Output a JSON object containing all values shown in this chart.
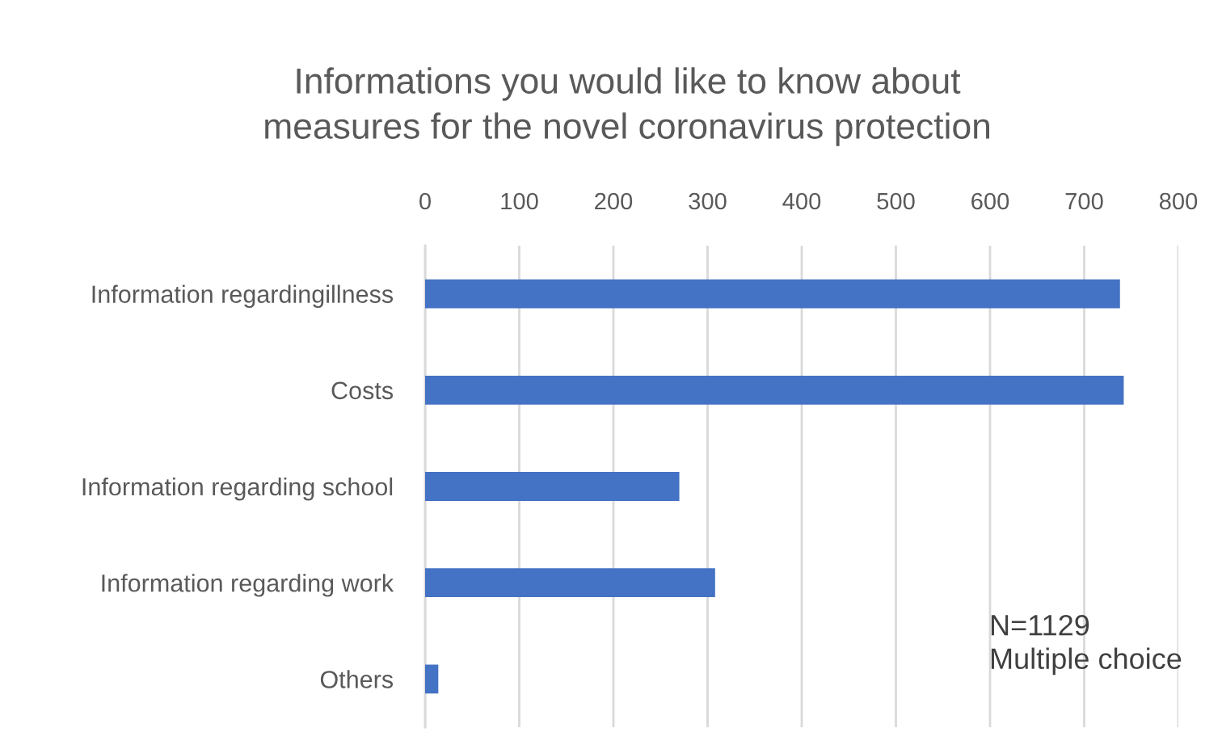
{
  "chart_data": {
    "type": "bar",
    "orientation": "horizontal",
    "title": "Informations you would like to know about\nmeasures for the novel coronavirus protection",
    "categories": [
      "Information regardingillness",
      "Costs",
      "Information regarding school",
      "Information regarding work",
      "Others"
    ],
    "values": [
      738,
      742,
      270,
      308,
      14
    ],
    "color": "#4472c4",
    "xlim": [
      0,
      800
    ],
    "xticks": [
      0,
      100,
      200,
      300,
      400,
      500,
      600,
      700,
      800
    ],
    "grid": "x",
    "annotations": [
      "N=1129\nMultiple choice"
    ]
  }
}
